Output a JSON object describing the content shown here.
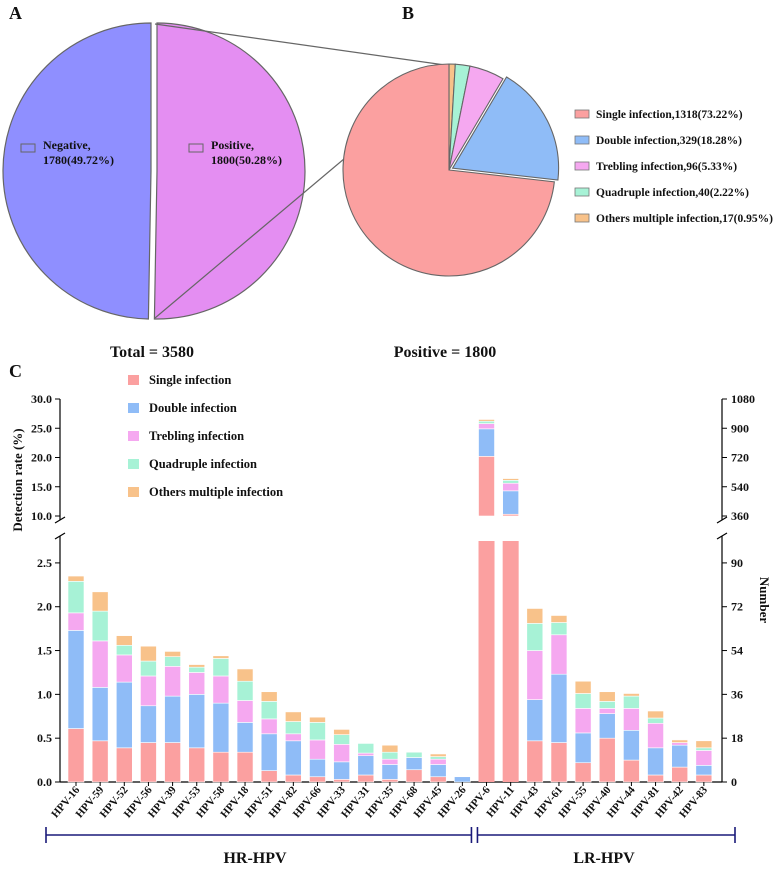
{
  "panel_labels": {
    "a": "A",
    "b": "B",
    "c": "C"
  },
  "colors": {
    "negative": "#8f8fff",
    "positive": "#e48ef2",
    "single": "#fba0a0",
    "double": "#8fbcf7",
    "trebling": "#f5a8f0",
    "quadruple": "#a7f2d6",
    "others": "#f8c28a",
    "bracket": "#1a1a7a"
  },
  "chart_data": [
    {
      "type": "pie",
      "panel": "A",
      "slices": [
        {
          "key": "negative",
          "label_line1": "Negative,",
          "label_line2": "1780(49.72%)",
          "value": 1780
        },
        {
          "key": "positive",
          "label_line1": "Positive,",
          "label_line2": "1800(50.28%)",
          "value": 1800
        }
      ],
      "total_label": "Total = 3580"
    },
    {
      "type": "pie",
      "panel": "B",
      "slices": [
        {
          "key": "single",
          "label": "Single infection,1318(73.22%)",
          "value": 1318
        },
        {
          "key": "double",
          "label": "Double infection,329(18.28%)",
          "value": 329
        },
        {
          "key": "trebling",
          "label": "Trebling infection,96(5.33%)",
          "value": 96
        },
        {
          "key": "quadruple",
          "label": "Quadruple infection,40(2.22%)",
          "value": 40
        },
        {
          "key": "others",
          "label": "Others multiple infection,17(0.95%)",
          "value": 17
        }
      ],
      "total_label": "Positive = 1800"
    },
    {
      "type": "bar",
      "stacked": true,
      "panel": "C",
      "ylabel": "Detection rate (%)",
      "y2label": "Number",
      "y_ticks_lower": [
        "0.0",
        "0.5",
        "1.0",
        "1.5",
        "2.0",
        "2.5"
      ],
      "y_ticks_upper": [
        "10.0",
        "15.0",
        "20.0",
        "25.0",
        "30.0"
      ],
      "y2_ticks_lower": [
        "0",
        "18",
        "36",
        "54",
        "72",
        "90"
      ],
      "y2_ticks_upper": [
        "360",
        "540",
        "720",
        "900",
        "1080"
      ],
      "ylim_lower": [
        0,
        2.75
      ],
      "ylim_upper": [
        10,
        30
      ],
      "series_names": [
        "Single infection",
        "Double infection",
        "Trebling infection",
        "Quadruple infection",
        "Others multiple infection"
      ],
      "series_keys": [
        "single",
        "double",
        "trebling",
        "quadruple",
        "others"
      ],
      "categories": [
        "HPV-16",
        "HPV-59",
        "HPV-52",
        "HPV-56",
        "HPV-39",
        "HPV-53",
        "HPV-58",
        "HPV-18",
        "HPV-51",
        "HPV-82",
        "HPV-66",
        "HPV-33",
        "HPV-31",
        "HPV-35",
        "HPV-68",
        "HPV-45",
        "HPV-26",
        "HPV-6",
        "HPV-11",
        "HPV-43",
        "HPV-61",
        "HPV-55",
        "HPV-40",
        "HPV-44",
        "HPV-81",
        "HPV-42",
        "HPV-83"
      ],
      "series": [
        {
          "name": "Single infection",
          "values": [
            0.61,
            0.47,
            0.39,
            0.45,
            0.45,
            0.39,
            0.34,
            0.34,
            0.13,
            0.08,
            0.06,
            0.03,
            0.08,
            0.03,
            0.14,
            0.06,
            0.0,
            20.2,
            10.3,
            0.47,
            0.45,
            0.22,
            0.5,
            0.25,
            0.08,
            0.17,
            0.08
          ]
        },
        {
          "name": "Double infection",
          "values": [
            1.12,
            0.61,
            0.75,
            0.42,
            0.53,
            0.61,
            0.56,
            0.34,
            0.42,
            0.39,
            0.2,
            0.2,
            0.22,
            0.17,
            0.14,
            0.14,
            0.06,
            4.7,
            4.0,
            0.47,
            0.78,
            0.34,
            0.28,
            0.34,
            0.31,
            0.25,
            0.11
          ]
        },
        {
          "name": "Trebling infection",
          "values": [
            0.2,
            0.53,
            0.31,
            0.34,
            0.34,
            0.25,
            0.31,
            0.25,
            0.17,
            0.08,
            0.22,
            0.2,
            0.03,
            0.06,
            0.0,
            0.06,
            0.0,
            0.9,
            1.3,
            0.56,
            0.45,
            0.28,
            0.06,
            0.25,
            0.28,
            0.03,
            0.17
          ]
        },
        {
          "name": "Quadruple infection",
          "values": [
            0.36,
            0.34,
            0.11,
            0.17,
            0.11,
            0.06,
            0.2,
            0.22,
            0.2,
            0.14,
            0.2,
            0.11,
            0.11,
            0.08,
            0.06,
            0.03,
            0.0,
            0.4,
            0.5,
            0.31,
            0.14,
            0.17,
            0.08,
            0.14,
            0.06,
            0.0,
            0.03
          ]
        },
        {
          "name": "Others multiple infection",
          "values": [
            0.06,
            0.22,
            0.11,
            0.17,
            0.06,
            0.03,
            0.03,
            0.14,
            0.11,
            0.11,
            0.06,
            0.06,
            0.0,
            0.08,
            0.0,
            0.03,
            0.0,
            0.3,
            0.3,
            0.17,
            0.08,
            0.14,
            0.11,
            0.03,
            0.08,
            0.03,
            0.08
          ]
        }
      ],
      "group_hr": "HR-HPV",
      "group_lr": "LR-HPV",
      "hr_count": 17
    }
  ]
}
